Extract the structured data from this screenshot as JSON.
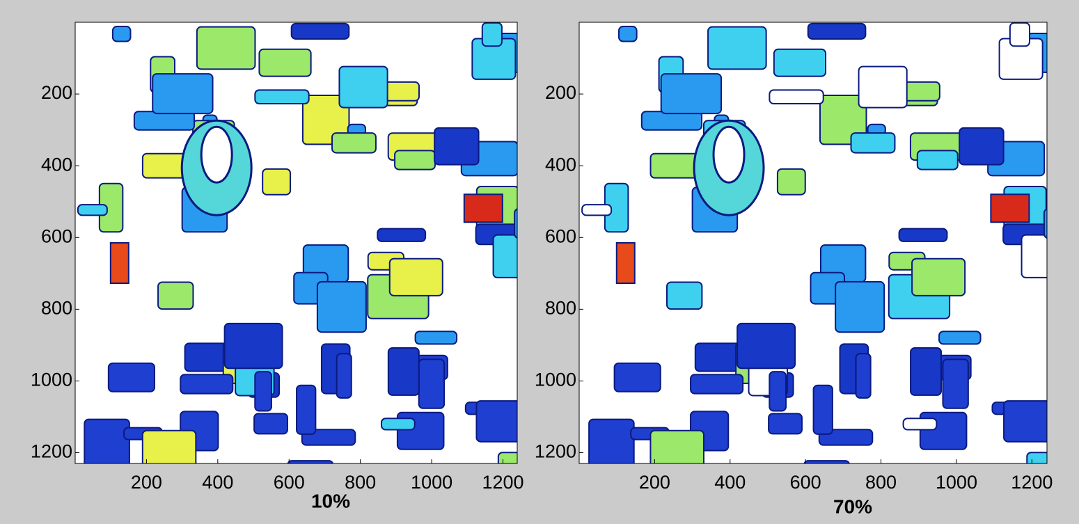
{
  "chart_data": [
    {
      "type": "heatmap",
      "title": "10%",
      "xlim": [
        0,
        1240
      ],
      "ylim": [
        0,
        1230
      ],
      "y_reversed": true,
      "xticks": [
        200,
        400,
        600,
        800,
        1000,
        1200
      ],
      "yticks": [
        200,
        400,
        600,
        800,
        1000,
        1200
      ]
    },
    {
      "type": "heatmap",
      "title": "70%",
      "xlim": [
        0,
        1240
      ],
      "ylim": [
        0,
        1230
      ],
      "y_reversed": true,
      "xticks": [
        200,
        400,
        600,
        800,
        1000,
        1200
      ],
      "yticks": [
        200,
        400,
        600,
        800,
        1000,
        1200
      ]
    }
  ]
}
